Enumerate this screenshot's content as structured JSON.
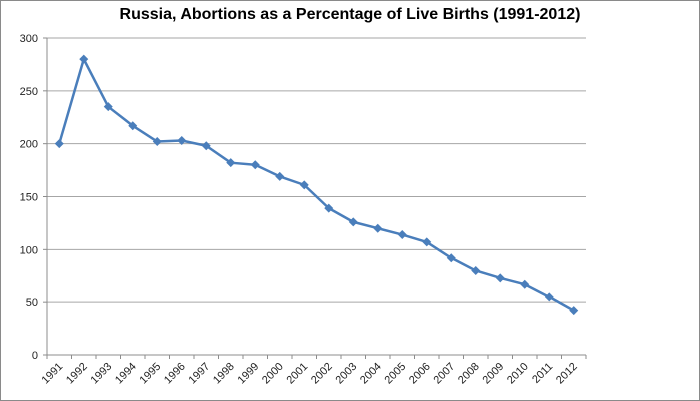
{
  "chart_data": {
    "type": "line",
    "title": "Russia,  Abortions  as a Percentage of Live Births (1991-2012)",
    "xlabel": "",
    "ylabel": "",
    "ylim": [
      0,
      300
    ],
    "yticks": [
      0,
      50,
      100,
      150,
      200,
      250,
      300
    ],
    "grid": true,
    "legend": "none",
    "categories": [
      "1991",
      "1992",
      "1993",
      "1994",
      "1995",
      "1996",
      "1997",
      "1998",
      "1999",
      "2000",
      "2001",
      "2002",
      "2003",
      "2004",
      "2005",
      "2006",
      "2007",
      "2008",
      "2009",
      "2010",
      "2011",
      "2012"
    ],
    "series": [
      {
        "name": "Abortions as % of live births",
        "color": "#4a7ebb",
        "values": [
          200,
          280,
          235,
          217,
          202,
          203,
          198,
          182,
          180,
          169,
          161,
          139,
          126,
          120,
          114,
          107,
          92,
          80,
          73,
          67,
          55,
          42
        ]
      }
    ]
  }
}
